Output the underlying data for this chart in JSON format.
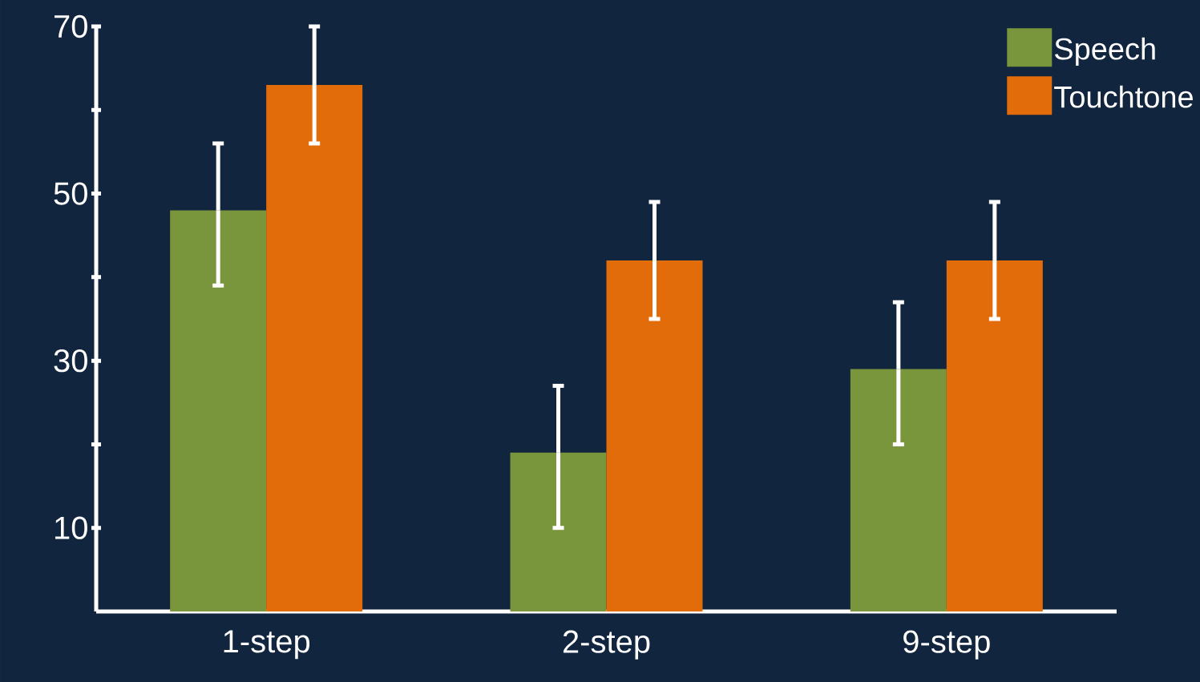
{
  "chart_data": {
    "type": "bar",
    "categories": [
      "1-step",
      "2-step",
      "9-step"
    ],
    "series": [
      {
        "name": "Speech",
        "color": "#7a963c",
        "values": [
          48,
          19,
          29
        ],
        "errors": [
          [
            39,
            56
          ],
          [
            10,
            27
          ],
          [
            20,
            37
          ]
        ]
      },
      {
        "name": "Touchtone",
        "color": "#e36c0a",
        "values": [
          63,
          42,
          42
        ],
        "errors": [
          [
            56,
            70
          ],
          [
            35,
            49
          ],
          [
            35,
            49
          ]
        ]
      }
    ],
    "ylim": [
      0,
      70
    ],
    "yticks": [
      10,
      {
        "value": 20,
        "label": null
      },
      30,
      {
        "value": 40,
        "label": null
      },
      50,
      {
        "value": 60,
        "label": null
      },
      70
    ],
    "legend": "top right"
  }
}
